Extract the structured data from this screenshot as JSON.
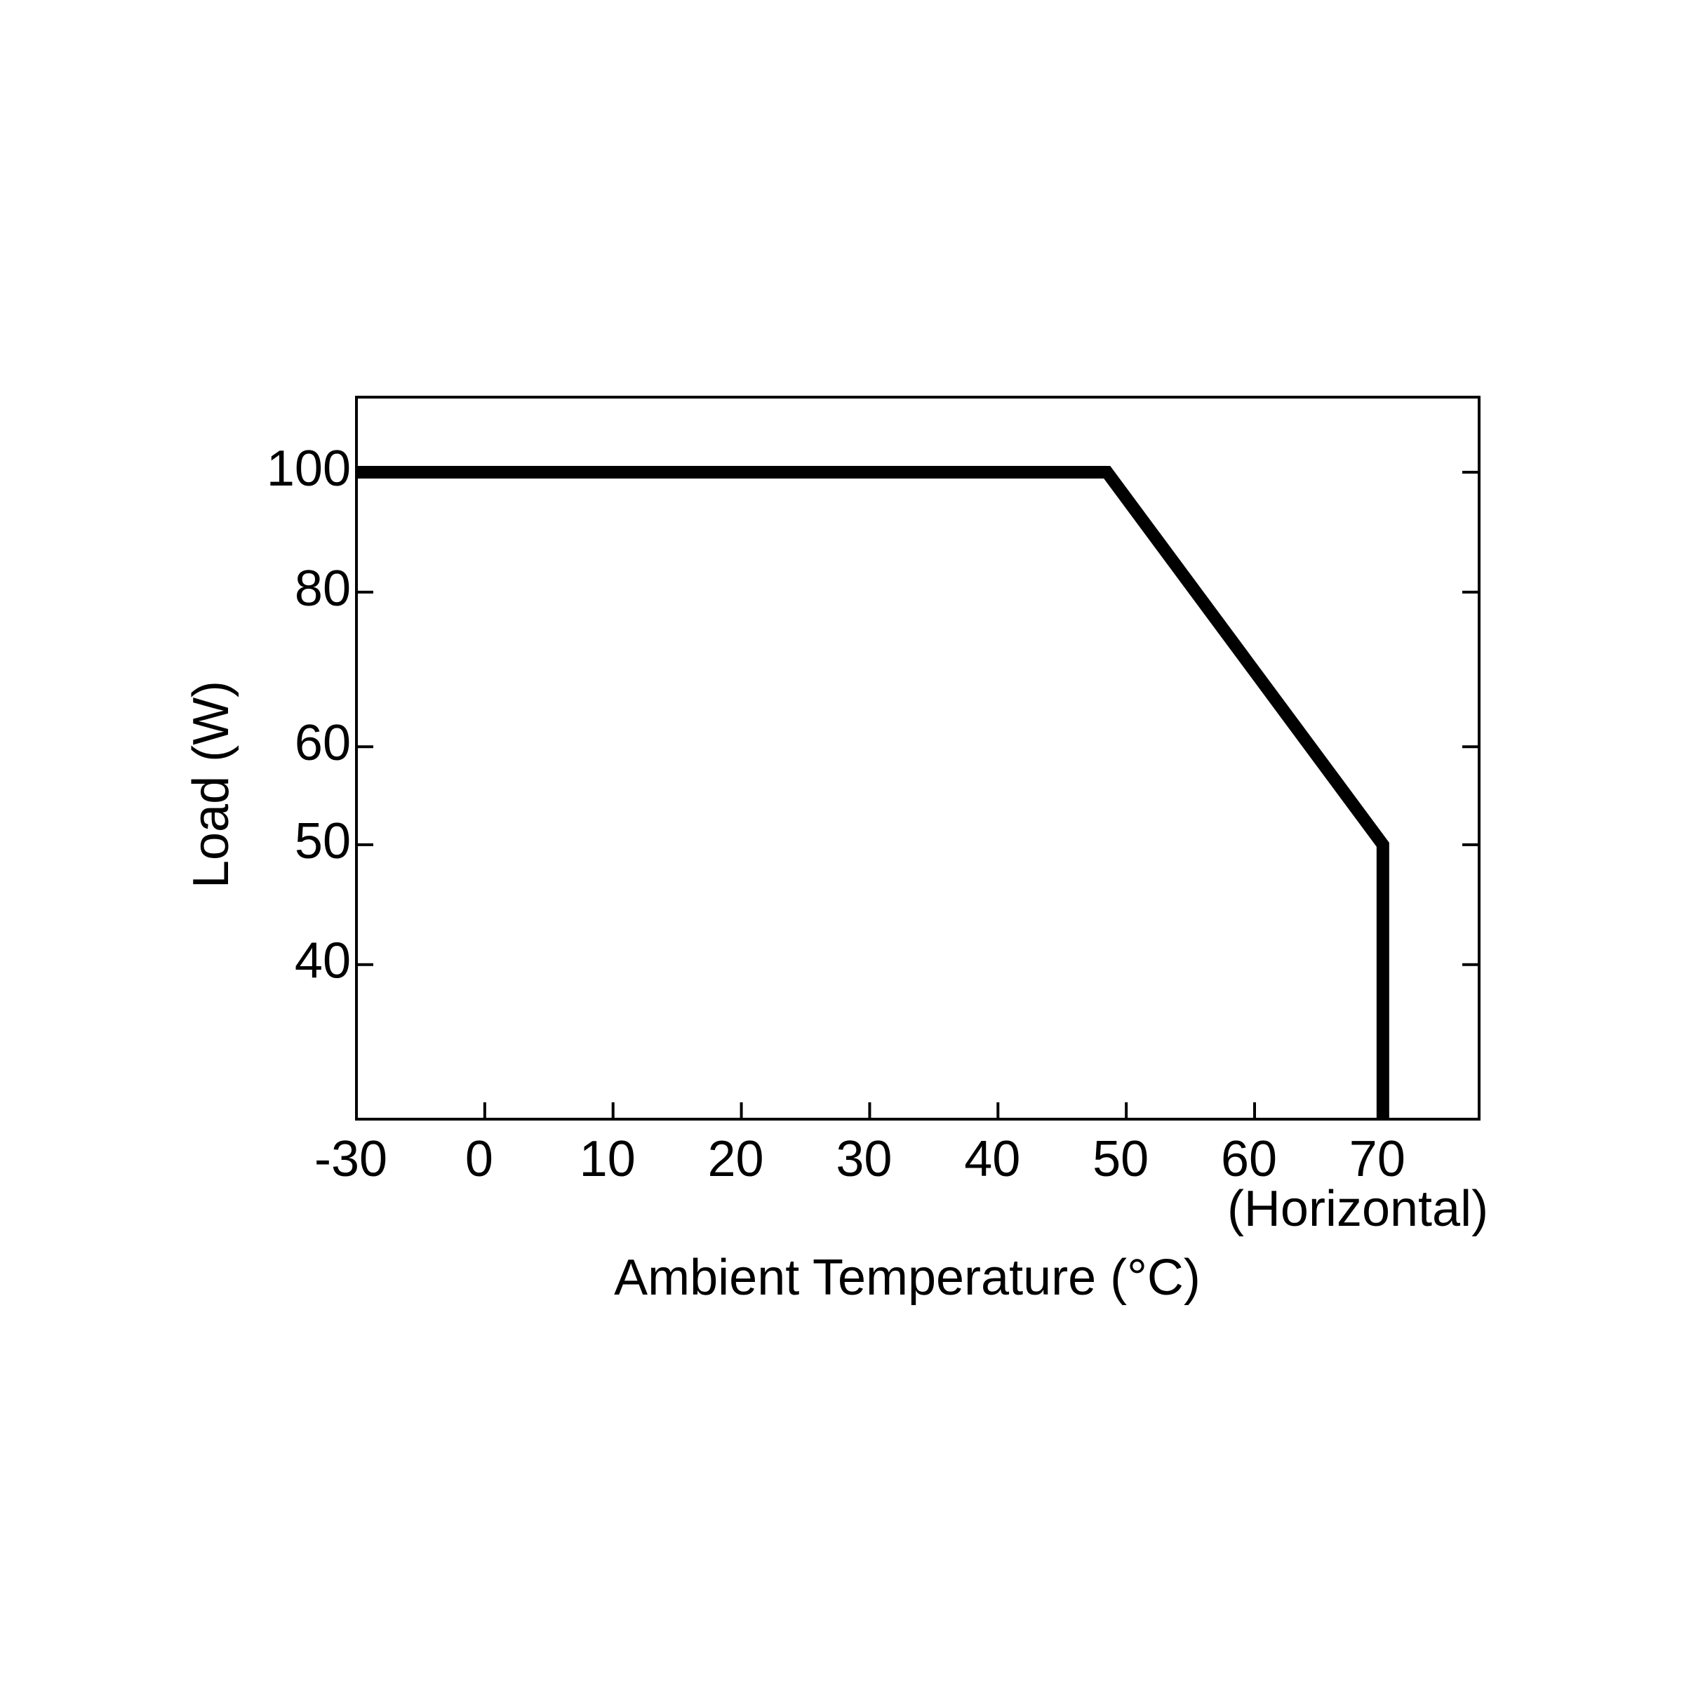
{
  "chart_data": {
    "type": "line",
    "x_label": "Ambient Temperature (°C)",
    "y_label": "Load (W)",
    "annotation": "(Horizontal)",
    "x": [
      -30,
      48.5,
      70,
      70
    ],
    "series": [
      {
        "name": "Load",
        "color": "#000000",
        "values": [
          100,
          100,
          50,
          30
        ]
      }
    ],
    "xlim": [
      -30,
      77.5
    ],
    "xticks": [
      -30,
      0,
      10,
      20,
      30,
      40,
      50,
      60,
      70
    ],
    "ylim": [
      30,
      115
    ],
    "yticks": [
      40,
      50,
      60,
      80,
      100
    ],
    "y_log_scale": true,
    "grid": false
  }
}
